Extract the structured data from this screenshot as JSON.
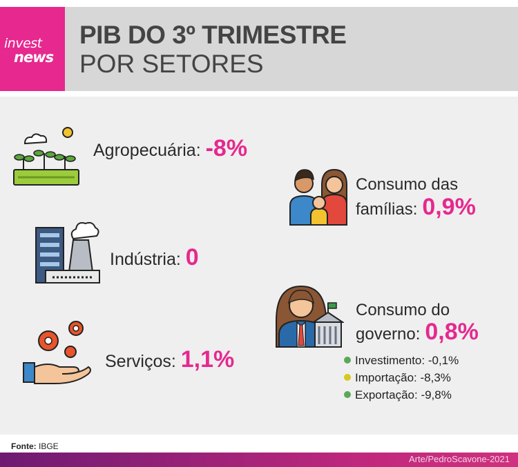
{
  "brand": {
    "line1": "invest",
    "line2": "news",
    "color": "#e6288f"
  },
  "header": {
    "title": "PIB DO 3º TRIMESTRE",
    "subtitle": "POR SETORES"
  },
  "sectors": {
    "agro": {
      "label": "Agropecuária:",
      "value": "-8%"
    },
    "industria": {
      "label": "Indústria:",
      "value": "0"
    },
    "servicos": {
      "label": "Serviços:",
      "value": "1,1%"
    },
    "familias": {
      "line1": "Consumo das",
      "line2": "famílias:",
      "value": "0,9%"
    },
    "governo": {
      "line1": "Consumo do",
      "line2": "governo:",
      "value": "0,8%"
    }
  },
  "extras": [
    {
      "label": "Investimento: -0,1%",
      "dot_color": "#5aa85a"
    },
    {
      "label": "Importação: -8,3%",
      "dot_color": "#d8c81c"
    },
    {
      "label": "Exportação: -9,8%",
      "dot_color": "#5aa85a"
    }
  ],
  "source": {
    "label": "Fonte:",
    "value": "IBGE"
  },
  "credit": "Arte/PedroScavone-2021",
  "icons": [
    "plants-icon",
    "factory-icon",
    "gears-hand-icon",
    "family-icon",
    "government-icon"
  ]
}
